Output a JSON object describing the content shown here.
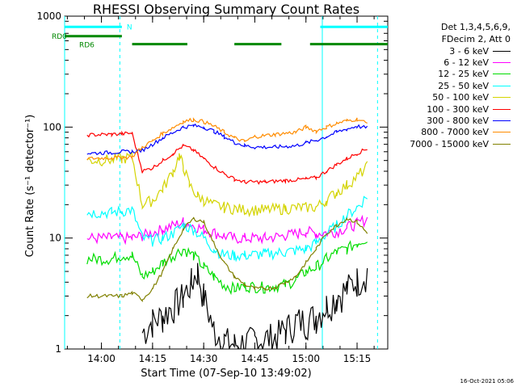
{
  "chart_data": {
    "type": "line",
    "title": "RHESSI Observing Summary Count Rates",
    "ylabel": "Count Rate (s⁻¹ detector⁻¹)",
    "xlabel": "Start Time (07-Sep-10 13:49:02)",
    "y_scale": "log",
    "ylim": [
      1,
      1000
    ],
    "y_ticks": [
      1,
      10,
      100,
      1000
    ],
    "xlim_minutes": [
      13.82,
      15.4
    ],
    "x_ticks": [
      {
        "value": 14.0,
        "label": "14:00"
      },
      {
        "value": 14.25,
        "label": "14:15"
      },
      {
        "value": 14.5,
        "label": "14:30"
      },
      {
        "value": 14.75,
        "label": "14:45"
      },
      {
        "value": 15.0,
        "label": "15:00"
      },
      {
        "value": 15.25,
        "label": "15:15"
      }
    ],
    "legend_header": [
      "Det 1,3,4,5,6,9,",
      "FDecim 2, Att 0"
    ],
    "legend_placement": "right",
    "grid": false,
    "series": [
      {
        "name": "3 - 6 keV",
        "color": "#000000",
        "x": [
          13.93,
          14.1,
          14.2,
          14.25,
          14.3,
          14.4,
          14.44,
          14.47,
          14.5,
          14.55,
          14.6,
          14.65,
          14.75,
          14.85,
          14.9,
          14.95,
          15.0,
          15.05,
          15.1,
          15.15,
          15.2,
          15.25,
          15.3
        ],
        "y": [
          null,
          null,
          1.4,
          1.8,
          2.0,
          3.0,
          4.0,
          5.0,
          3.0,
          1.5,
          1.2,
          1.1,
          1.2,
          1.3,
          1.5,
          1.8,
          1.8,
          2.0,
          2.5,
          3.0,
          3.5,
          4.2,
          5.0
        ]
      },
      {
        "name": "6 - 12 keV",
        "color": "#ff00ff",
        "x": [
          13.93,
          14.05,
          14.1,
          14.15,
          14.2,
          14.3,
          14.4,
          14.5,
          14.6,
          14.65,
          14.7,
          14.8,
          14.9,
          15.0,
          15.05,
          15.15,
          15.2,
          15.25,
          15.3
        ],
        "y": [
          10,
          10,
          10,
          10,
          10.5,
          12,
          14,
          12,
          10.5,
          10,
          10,
          10,
          10.5,
          11.5,
          11,
          11.5,
          12.5,
          13.5,
          15
        ]
      },
      {
        "name": "12 - 25 keV",
        "color": "#00dd00",
        "x": [
          13.93,
          14.05,
          14.1,
          14.15,
          14.2,
          14.25,
          14.3,
          14.35,
          14.4,
          14.45,
          14.5,
          14.55,
          14.6,
          14.65,
          14.7,
          14.8,
          14.9,
          14.95,
          15.0,
          15.05,
          15.1,
          15.15,
          15.2,
          15.25,
          15.3
        ],
        "y": [
          6.5,
          6.5,
          7,
          7,
          4.5,
          5,
          6,
          7,
          8,
          7,
          5.5,
          4.5,
          3.8,
          3.5,
          3.7,
          3.6,
          3.8,
          4.2,
          5,
          5.5,
          6.5,
          7.5,
          8,
          9,
          10
        ]
      },
      {
        "name": "25 - 50 keV",
        "color": "#00ffff",
        "x": [
          13.93,
          14.05,
          14.1,
          14.15,
          14.2,
          14.25,
          14.3,
          14.35,
          14.4,
          14.45,
          14.5,
          14.55,
          14.6,
          14.65,
          14.7,
          14.8,
          14.9,
          15.0,
          15.05,
          15.1,
          15.15,
          15.2,
          15.25,
          15.3
        ],
        "y": [
          17,
          17,
          17.5,
          18,
          10,
          9.5,
          10,
          11,
          13,
          12,
          10,
          8,
          7,
          7,
          7,
          7.2,
          7.5,
          8,
          9,
          11,
          13,
          16,
          19,
          24
        ]
      },
      {
        "name": "50 - 100 keV",
        "color": "#d4d400",
        "x": [
          13.93,
          14.05,
          14.1,
          14.15,
          14.2,
          14.25,
          14.3,
          14.35,
          14.38,
          14.4,
          14.43,
          14.47,
          14.5,
          14.55,
          14.6,
          14.65,
          14.7,
          14.8,
          14.9,
          15.0,
          15.05,
          15.1,
          15.15,
          15.2,
          15.25,
          15.3
        ],
        "y": [
          50,
          51,
          52,
          54,
          20,
          22,
          28,
          40,
          55,
          45,
          30,
          24,
          22,
          20,
          19,
          18.5,
          18,
          18,
          18.5,
          19,
          19,
          22,
          26,
          30,
          36,
          44
        ]
      },
      {
        "name": "100 - 300 keV",
        "color": "#ff0000",
        "x": [
          13.93,
          14.05,
          14.1,
          14.15,
          14.2,
          14.25,
          14.3,
          14.35,
          14.4,
          14.45,
          14.5,
          14.55,
          14.6,
          14.65,
          14.7,
          14.8,
          14.9,
          15.0,
          15.05,
          15.1,
          15.15,
          15.2,
          15.25,
          15.3
        ],
        "y": [
          85,
          86,
          87,
          88,
          40,
          43,
          50,
          58,
          68,
          62,
          52,
          44,
          38,
          34,
          32,
          32,
          33,
          34,
          35,
          40,
          46,
          52,
          58,
          64
        ]
      },
      {
        "name": "300 - 800 keV",
        "color": "#0000ff",
        "x": [
          13.93,
          14.05,
          14.1,
          14.15,
          14.2,
          14.25,
          14.3,
          14.4,
          14.45,
          14.5,
          14.55,
          14.6,
          14.65,
          14.7,
          14.75,
          14.85,
          14.95,
          15.0,
          15.05,
          15.1,
          15.15,
          15.2,
          15.25,
          15.3
        ],
        "y": [
          58,
          59,
          60,
          60,
          62,
          70,
          80,
          100,
          103,
          100,
          92,
          82,
          73,
          68,
          66,
          66,
          68,
          72,
          76,
          82,
          90,
          96,
          102,
          98
        ]
      },
      {
        "name": "800 - 7000 keV",
        "color": "#ff8c00",
        "x": [
          13.93,
          14.05,
          14.1,
          14.15,
          14.2,
          14.25,
          14.3,
          14.4,
          14.45,
          14.5,
          14.55,
          14.6,
          14.65,
          14.7,
          14.75,
          14.85,
          14.95,
          15.0,
          15.05,
          15.1,
          15.15,
          15.2,
          15.25,
          15.3
        ],
        "y": [
          52,
          53,
          53,
          54,
          66,
          75,
          88,
          112,
          117,
          112,
          102,
          90,
          80,
          74,
          82,
          86,
          90,
          100,
          92,
          100,
          108,
          114,
          118,
          108
        ]
      },
      {
        "name": "7000 - 15000 keV",
        "color": "#808000",
        "x": [
          13.93,
          14.05,
          14.1,
          14.15,
          14.2,
          14.25,
          14.3,
          14.35,
          14.4,
          14.45,
          14.5,
          14.55,
          14.6,
          14.65,
          14.7,
          14.75,
          14.8,
          14.85,
          14.9,
          14.95,
          15.0,
          15.05,
          15.1,
          15.15,
          15.2,
          15.25,
          15.3
        ],
        "y": [
          3,
          3,
          3,
          3.2,
          2.8,
          3.5,
          5,
          8,
          12,
          15,
          14,
          9,
          6,
          4.5,
          3.8,
          3.5,
          3.5,
          3.6,
          4,
          4.5,
          6,
          8,
          11,
          13,
          15,
          14,
          11
        ]
      }
    ],
    "status_bars": [
      {
        "label": "N",
        "color": "#00ffff",
        "segments": [
          [
            13.82,
            14.1
          ],
          [
            15.07,
            15.4
          ]
        ],
        "level": 800
      },
      {
        "label": "RD0",
        "color": "#008800",
        "segments": [
          [
            13.82,
            14.1
          ]
        ],
        "level": 660
      },
      {
        "label": "RD6",
        "color": "#008800",
        "segments": [
          [
            14.15,
            14.42
          ],
          [
            14.65,
            14.88
          ],
          [
            15.02,
            15.4
          ]
        ],
        "level": 560
      }
    ],
    "markers": [
      {
        "x": 13.82,
        "color": "#00ffff",
        "style": "solid"
      },
      {
        "x": 14.09,
        "color": "#00ffff",
        "style": "dashed"
      },
      {
        "x": 15.08,
        "color": "#00ffff",
        "style": "solid"
      },
      {
        "x": 15.35,
        "color": "#00ffff",
        "style": "dashed"
      }
    ]
  },
  "timestamp": "16-Oct-2021 05:06"
}
